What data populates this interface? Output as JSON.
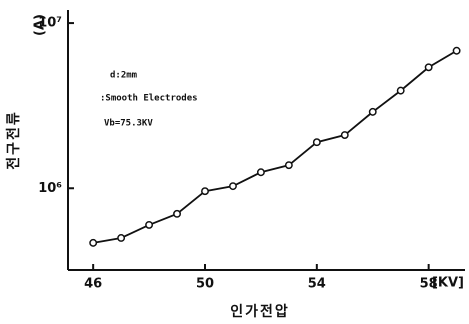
{
  "chart_data": {
    "type": "line",
    "x_label": "인가전압",
    "y_label": "전구전류",
    "y_unit": "(A)",
    "x_unit": "[KV]",
    "annotations": [
      "d:2mm",
      ":Smooth Electrodes",
      "Vb=75.3KV"
    ],
    "x": [
      46,
      47,
      48,
      49,
      50,
      51,
      52,
      53,
      54,
      55,
      56,
      57,
      58,
      59
    ],
    "series": [
      {
        "color": "#111111",
        "values": [
          467000,
          500000,
          600000,
          700000,
          960000,
          1030000,
          1250000,
          1380000,
          1900000,
          2100000,
          2900000,
          3900000,
          5400000,
          6800000
        ]
      }
    ],
    "xlim": [
      45.1,
      59.3
    ],
    "xticks": [
      46,
      50,
      54,
      58
    ],
    "ylim": [
      320000,
      12000000
    ],
    "log_y": true,
    "yticks": [
      {
        "value": 1000000,
        "label": "10⁶"
      },
      {
        "value": 10000000,
        "label": "10⁷"
      }
    ]
  }
}
